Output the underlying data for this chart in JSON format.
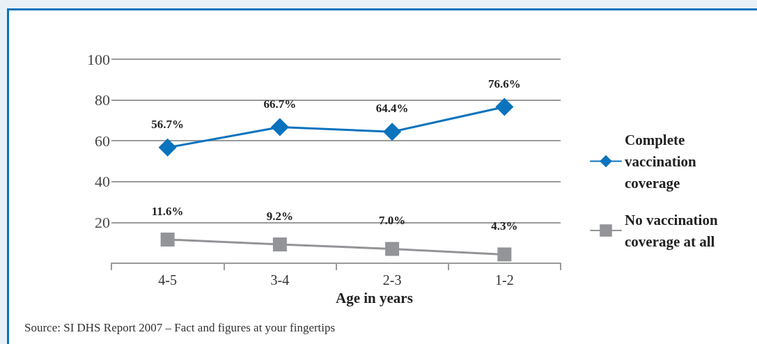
{
  "chart_data": {
    "type": "line",
    "categories": [
      "4-5",
      "3-4",
      "2-3",
      "1-2"
    ],
    "xlabel": "Age in years",
    "series": [
      {
        "name": "Complete vaccination coverage",
        "color": "#0a73bd",
        "marker": "diamond",
        "values": [
          56.7,
          66.7,
          64.4,
          76.6
        ],
        "value_labels": [
          "56.7%",
          "66.7%",
          "64.4%",
          "76.6%"
        ]
      },
      {
        "name": "No vaccination coverage at all",
        "color": "#929497",
        "marker": "square",
        "values": [
          11.6,
          9.2,
          7.0,
          4.3
        ],
        "value_labels": [
          "11.6%",
          "9.2%",
          "7.0%",
          "4.3%"
        ]
      }
    ],
    "ylim": [
      0,
      100
    ],
    "yticks": [
      20,
      40,
      60,
      80,
      100
    ],
    "grid": "y",
    "legend": "right",
    "annotations": [
      "Source: SI DHS Report 2007 – Fact and figures at your fingertips"
    ]
  }
}
